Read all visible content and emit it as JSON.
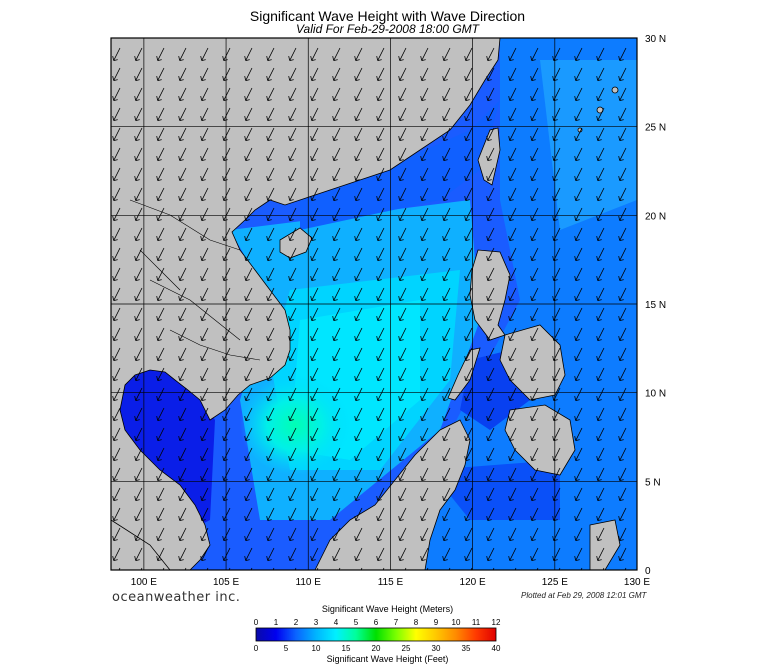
{
  "title": "Significant Wave Height with Wave Direction",
  "subtitle": "Valid For Feb-29-2008 18:00 GMT",
  "brand": "oceanweather inc.",
  "plotted": "Plotted at Feb 29, 2008 12:01 GMT",
  "map": {
    "lon_range": [
      98,
      130
    ],
    "lat_range": [
      0,
      30
    ],
    "lon_ticks": [
      "100 E",
      "105 E",
      "110 E",
      "115 E",
      "120 E",
      "125 E",
      "130 E"
    ],
    "lat_ticks": [
      "30 N",
      "25 N",
      "20 N",
      "15 N",
      "10 N",
      "5 N",
      "0"
    ],
    "grid": true,
    "land_color": "#c0c0c0",
    "wave_direction": "from northeast (arrows pointing southwest)"
  },
  "colorbar": {
    "title": "Significant Wave Height (Meters)",
    "bottom_label": "Significant Wave Height (Feet)",
    "meters": [
      "0",
      "1",
      "2",
      "3",
      "4",
      "5",
      "6",
      "7",
      "8",
      "9",
      "10",
      "11",
      "12"
    ],
    "feet": [
      "0",
      "5",
      "10",
      "15",
      "20",
      "25",
      "30",
      "35",
      "40"
    ],
    "colors": [
      "#0a0aa8",
      "#0000f0",
      "#0a64ff",
      "#00b4ff",
      "#00f0ff",
      "#00ff9a",
      "#00e000",
      "#7aff00",
      "#ffff00",
      "#ffc800",
      "#ff8a00",
      "#ff3a00",
      "#e00000"
    ]
  }
}
